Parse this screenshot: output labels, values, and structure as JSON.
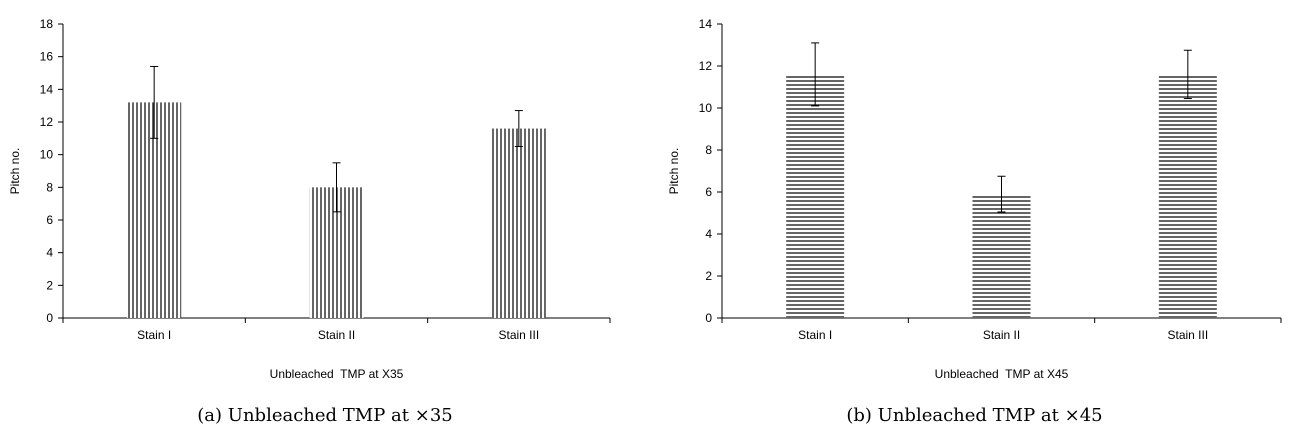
{
  "chart_data": [
    {
      "type": "bar",
      "pattern": "vertical",
      "categories": [
        "Stain I",
        "Stain II",
        "Stain III"
      ],
      "values": [
        13.2,
        8.0,
        11.6
      ],
      "errors": [
        2.2,
        1.5,
        1.1
      ],
      "title": "",
      "xlabel": "Unbleached  TMP at X35",
      "ylabel": "Pitch no.",
      "ylim": [
        0,
        18
      ],
      "yticks": [
        0,
        2,
        4,
        6,
        8,
        10,
        12,
        14,
        16,
        18
      ],
      "caption": "(a) Unbleached TMP at ×35"
    },
    {
      "type": "bar",
      "pattern": "horizontal",
      "categories": [
        "Stain I",
        "Stain II",
        "Stain III"
      ],
      "values": [
        11.6,
        5.9,
        11.6
      ],
      "errors": [
        1.5,
        0.85,
        1.15
      ],
      "title": "",
      "xlabel": "Unbleached  TMP at X45",
      "ylabel": "Pitch no.",
      "ylim": [
        0,
        14
      ],
      "yticks": [
        0,
        2,
        4,
        6,
        8,
        10,
        12,
        14
      ],
      "caption": "(b) Unbleached TMP at ×45"
    }
  ]
}
